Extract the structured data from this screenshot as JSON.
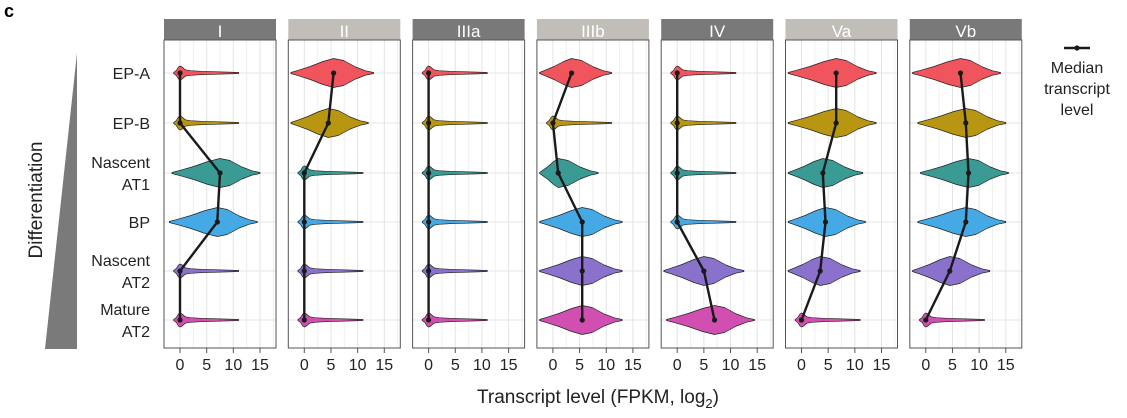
{
  "panel_letter": "c",
  "y_axis_title": "Differentiation",
  "legend": {
    "label_lines": [
      "Median",
      "transcript",
      "level"
    ],
    "placement": "top-right"
  },
  "x_axis_title": "Transcript level (FPKM, log",
  "x_axis_subscript": "2",
  "x_axis_title_end": ")",
  "colors": {
    "EP-A": "#f0545c",
    "EP-B": "#b99612",
    "Nascent AT1": "#3a9a94",
    "BP": "#45a9e6",
    "Nascent AT2": "#8a72cc",
    "Mature AT2": "#d24fb2",
    "strip_dark": "#797979",
    "strip_light": "#c1bdb8",
    "median_line": "#1a1a1a"
  },
  "chart_data": {
    "type": "violin",
    "facets": [
      "I",
      "II",
      "IIIa",
      "IIIb",
      "IV",
      "Va",
      "Vb"
    ],
    "facet_strip_style": [
      "dark",
      "light",
      "dark",
      "light",
      "dark",
      "light",
      "dark"
    ],
    "categories": [
      "EP-A",
      "EP-B",
      "Nascent AT1",
      "BP",
      "Nascent AT2",
      "Mature AT2"
    ],
    "category_labels": [
      [
        "EP-A"
      ],
      [
        "EP-B"
      ],
      [
        "Nascent",
        "AT1"
      ],
      [
        "BP"
      ],
      [
        "Nascent",
        "AT2"
      ],
      [
        "Mature",
        "AT2"
      ]
    ],
    "x_ticks": [
      0,
      5,
      10,
      15
    ],
    "xlim": [
      -3,
      18
    ],
    "grid": true,
    "medians": [
      [
        0,
        0,
        7.5,
        7,
        0,
        0
      ],
      [
        5.5,
        4.5,
        0,
        0,
        0,
        0
      ],
      [
        0,
        0,
        0,
        0,
        0,
        0
      ],
      [
        3.5,
        0,
        1,
        5.5,
        5.5,
        5.5
      ],
      [
        0,
        0,
        0,
        0,
        5,
        7
      ],
      [
        6.5,
        6.5,
        4,
        4.5,
        3.5,
        0
      ],
      [
        6.5,
        7.5,
        8,
        7.5,
        4.5,
        0
      ]
    ]
  }
}
